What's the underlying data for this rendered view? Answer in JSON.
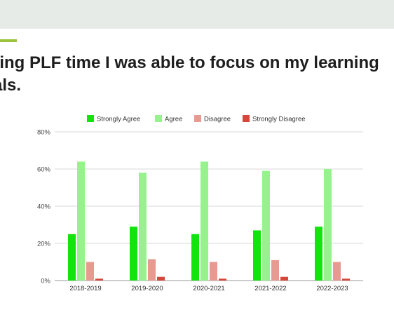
{
  "slide": {
    "title_line1": "ring PLF time I was able to focus on my learning",
    "title_line2": "als.",
    "colors": {
      "topbar": "#e6ebe8",
      "accent": "#9ac43c",
      "text": "#1e1e1e"
    }
  },
  "chart_data": {
    "type": "bar",
    "title": "",
    "xlabel": "",
    "ylabel": "",
    "categories": [
      "2018-2019",
      "2019-2020",
      "2020-2021",
      "2021-2022",
      "2022-2023"
    ],
    "ylim": [
      0,
      80
    ],
    "yticks": [
      0,
      20,
      40,
      60,
      80
    ],
    "ytick_labels": [
      "0%",
      "20%",
      "40%",
      "60%",
      "80%"
    ],
    "grid": true,
    "legend_position": "top",
    "series": [
      {
        "name": "Strongly Agree",
        "color": "#15e30f",
        "values": [
          25,
          29,
          25,
          27,
          29
        ]
      },
      {
        "name": "Agree",
        "color": "#97f28e",
        "values": [
          64,
          58,
          64,
          59,
          60
        ]
      },
      {
        "name": "Disagree",
        "color": "#e89a91",
        "values": [
          10,
          11.5,
          10,
          11,
          10
        ]
      },
      {
        "name": "Strongly Disagree",
        "color": "#d5473a",
        "values": [
          1,
          2,
          1,
          2,
          1
        ]
      }
    ]
  }
}
